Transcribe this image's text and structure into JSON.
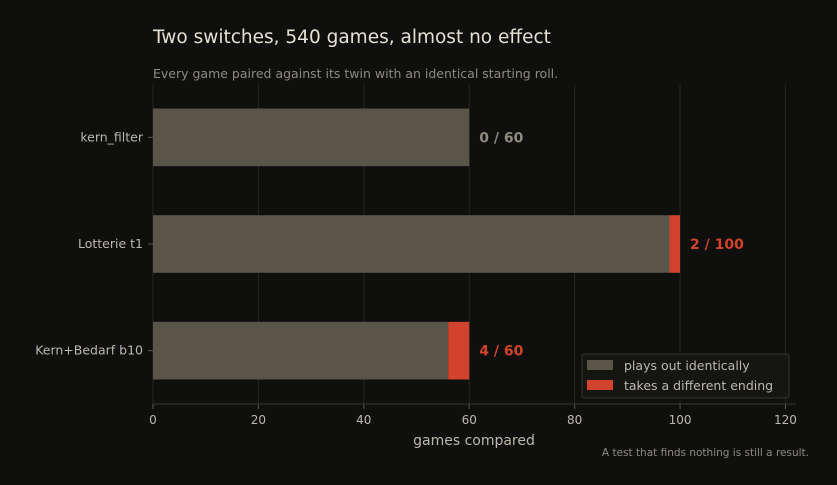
{
  "colors": {
    "background": "#0f0f0e",
    "identical": "#5a5549",
    "different": "#d1432c",
    "title": "#e6e0d2",
    "subtitle": "#8e8a80",
    "axis_text": "#bdb8ad",
    "grid": "#262623",
    "legend_bg": "#151511",
    "legend_border": "#34332e",
    "zero_label": "#8e8a80"
  },
  "chart_data": {
    "type": "bar",
    "orientation": "horizontal",
    "stacked": true,
    "title": "Two switches, 540 games, almost no effect",
    "subtitle": "Every game paired against its twin with an identical starting roll.",
    "xlabel": "games compared",
    "ylabel": "",
    "xlim": [
      0,
      122
    ],
    "xticks": [
      0,
      20,
      40,
      60,
      80,
      100,
      120
    ],
    "grid": true,
    "legend_position": "bottom-right",
    "categories": [
      "kern_filter",
      "Lotterie t1",
      "Kern+Bedarf b10"
    ],
    "series": [
      {
        "name": "plays out identically",
        "values": [
          60,
          98,
          56
        ]
      },
      {
        "name": "takes a different ending",
        "values": [
          0,
          2,
          4
        ]
      }
    ],
    "bar_labels": [
      "0 / 60",
      "2 / 100",
      "4 / 60"
    ],
    "footnote": "A test that finds nothing is still a result."
  }
}
